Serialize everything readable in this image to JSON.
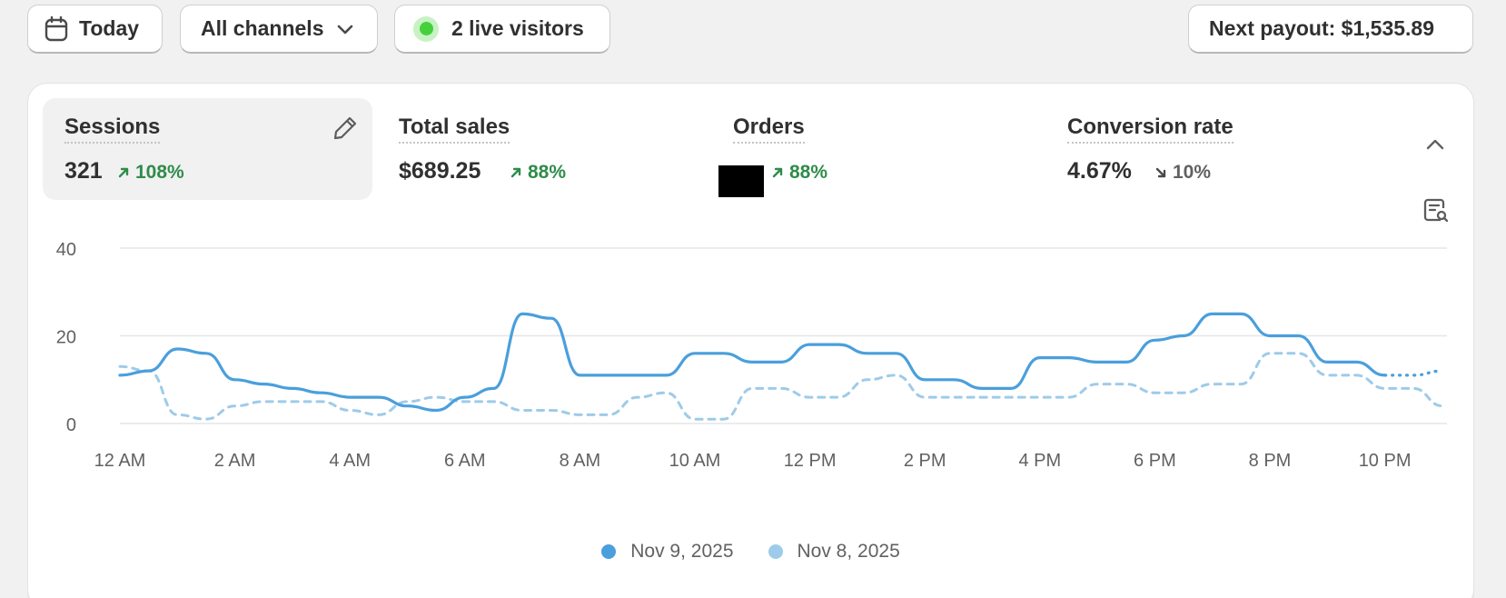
{
  "filters": {
    "date_label": "Today",
    "channel_label": "All channels",
    "live_visitors_label": "2 live visitors"
  },
  "payout": {
    "label": "Next payout: $1,535.89"
  },
  "metrics": [
    {
      "label": "Sessions",
      "value": "321",
      "delta": "108%",
      "trend": "up"
    },
    {
      "label": "Total sales",
      "value": "$689.25",
      "delta": "88%",
      "trend": "up"
    },
    {
      "label": "Orders",
      "value": "",
      "delta": "88%",
      "trend": "up"
    },
    {
      "label": "Conversion rate",
      "value": "4.67%",
      "delta": "10%",
      "trend": "down"
    }
  ],
  "colors": {
    "current": "#4a9fdc",
    "previous": "#9ecbe9",
    "up": "#2f8c4a",
    "down": "#616161"
  },
  "chart_data": {
    "type": "line",
    "ylim": [
      0,
      40
    ],
    "yticks": [
      "0",
      "20",
      "40"
    ],
    "xticks": [
      "12 AM",
      "2 AM",
      "4 AM",
      "6 AM",
      "8 AM",
      "10 AM",
      "12 PM",
      "2 PM",
      "4 PM",
      "6 PM",
      "8 PM",
      "10 PM"
    ],
    "x_hours": [
      0,
      0.5,
      1,
      1.5,
      2,
      2.5,
      3,
      3.5,
      4,
      4.5,
      5,
      5.5,
      6,
      6.5,
      7,
      7.5,
      8,
      8.5,
      9,
      9.5,
      10,
      10.5,
      11,
      11.5,
      12,
      12.5,
      13,
      13.5,
      14,
      14.5,
      15,
      15.5,
      16,
      16.5,
      17,
      17.5,
      18,
      18.5,
      19,
      19.5,
      20,
      20.5,
      21,
      21.5,
      22,
      22.5,
      23
    ],
    "series": [
      {
        "name": "Nov 9, 2025",
        "style": "solid",
        "dotted_tail_from_hour": 22,
        "values": [
          11,
          12,
          17,
          16,
          10,
          9,
          8,
          7,
          6,
          6,
          4,
          3,
          6,
          8,
          25,
          24,
          11,
          11,
          11,
          11,
          16,
          16,
          14,
          14,
          18,
          18,
          16,
          16,
          10,
          10,
          8,
          8,
          15,
          15,
          14,
          14,
          19,
          20,
          25,
          25,
          20,
          20,
          14,
          14,
          11,
          11,
          12
        ]
      },
      {
        "name": "Nov 8, 2025",
        "style": "dashed",
        "values": [
          13,
          12,
          2,
          1,
          4,
          5,
          5,
          5,
          3,
          2,
          5,
          6,
          5,
          5,
          3,
          3,
          2,
          2,
          6,
          7,
          1,
          1,
          8,
          8,
          6,
          6,
          10,
          11,
          6,
          6,
          6,
          6,
          6,
          6,
          9,
          9,
          7,
          7,
          9,
          9,
          16,
          16,
          11,
          11,
          8,
          8,
          4
        ]
      }
    ]
  }
}
